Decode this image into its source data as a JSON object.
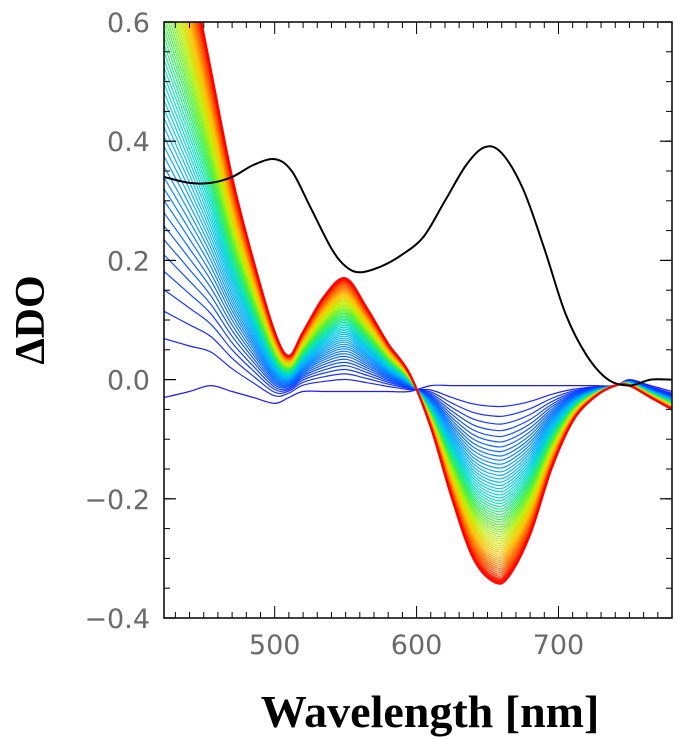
{
  "chart_data": {
    "type": "line",
    "title": "",
    "xlabel": "Wavelength [nm]",
    "ylabel": "ΔDO",
    "xlim": [
      422,
      780
    ],
    "ylim": [
      -0.4,
      0.6
    ],
    "x_ticks": [
      500,
      600,
      700
    ],
    "x_tick_labels": [
      "500",
      "600",
      "700"
    ],
    "y_ticks": [
      0.6,
      0.4,
      0.2,
      0.0,
      -0.2,
      -0.4
    ],
    "y_tick_labels": [
      "0.6",
      "0.4",
      "0.2",
      "0.0",
      "−0.2",
      "−0.4"
    ],
    "grid": false,
    "legend": "none",
    "reference_spectrum": {
      "color": "#000000",
      "x": [
        422,
        440,
        455,
        470,
        485,
        500,
        512,
        525,
        540,
        550,
        560,
        575,
        590,
        605,
        620,
        635,
        648,
        660,
        675,
        690,
        705,
        720,
        735,
        750,
        765,
        780
      ],
      "y": [
        0.34,
        0.33,
        0.33,
        0.34,
        0.36,
        0.37,
        0.35,
        0.29,
        0.22,
        0.19,
        0.18,
        0.19,
        0.21,
        0.24,
        0.3,
        0.36,
        0.39,
        0.38,
        0.32,
        0.22,
        0.11,
        0.04,
        0.0,
        -0.01,
        0.0,
        0.0
      ]
    },
    "transient_spectra": {
      "colormap": "blue-to-red (time evolution)",
      "colors": [
        "#1010ff",
        "#0060ff",
        "#00b0ff",
        "#00e0c0",
        "#40f040",
        "#c0f000",
        "#ffc000",
        "#ff6000",
        "#ff0000"
      ],
      "count": 60,
      "x": [
        422,
        440,
        455,
        470,
        485,
        500,
        510,
        520,
        535,
        550,
        565,
        580,
        595,
        610,
        625,
        640,
        655,
        665,
        680,
        695,
        710,
        725,
        740,
        750,
        765,
        780
      ],
      "final_y": [
        0.9,
        0.7,
        0.52,
        0.34,
        0.2,
        0.08,
        0.04,
        0.08,
        0.14,
        0.17,
        0.12,
        0.06,
        0.01,
        -0.08,
        -0.2,
        -0.3,
        -0.34,
        -0.33,
        -0.26,
        -0.15,
        -0.07,
        -0.03,
        -0.01,
        -0.01,
        -0.03,
        -0.05
      ],
      "early_y": [
        -0.03,
        -0.02,
        -0.01,
        -0.02,
        -0.03,
        -0.04,
        -0.03,
        -0.02,
        -0.02,
        -0.02,
        -0.02,
        -0.02,
        -0.02,
        -0.01,
        -0.01,
        -0.01,
        -0.01,
        -0.01,
        -0.01,
        -0.01,
        -0.01,
        -0.01,
        -0.01,
        0.0,
        -0.01,
        -0.02
      ]
    }
  }
}
